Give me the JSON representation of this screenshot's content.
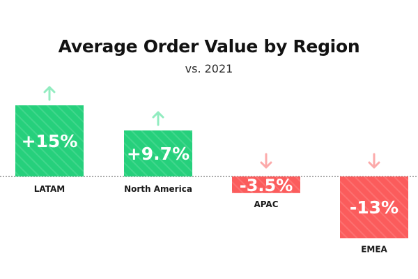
{
  "chart_data": {
    "type": "bar",
    "title": "Average Order Value by Region",
    "subtitle": "vs. 2021",
    "categories": [
      "LATAM",
      "North America",
      "APAC",
      "EMEA"
    ],
    "values": [
      15,
      9.7,
      -3.5,
      -13
    ],
    "value_labels": [
      "+15%",
      "+9.7%",
      "-3.5%",
      "-13%"
    ],
    "xlabel": "",
    "ylabel": "",
    "grid": false,
    "colors": {
      "positive": "#26d07c",
      "negative": "#fb5c5c",
      "positive_arrow": "#92ecc0",
      "negative_arrow": "#fcaaaa",
      "baseline": "#555555"
    },
    "icons": {
      "positive": "arrow-up-icon",
      "negative": "arrow-down-icon"
    }
  }
}
